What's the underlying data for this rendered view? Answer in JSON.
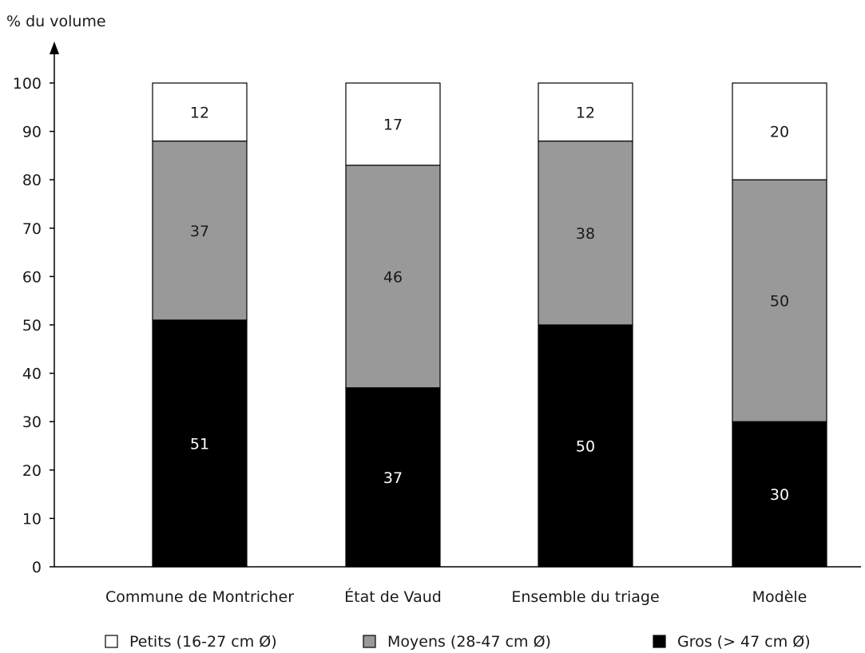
{
  "chart_data": {
    "type": "bar",
    "stacked": true,
    "title": "",
    "xlabel": "",
    "ylabel": "% du volume",
    "ylim": [
      0,
      100
    ],
    "yticks": [
      0,
      10,
      20,
      30,
      40,
      50,
      60,
      70,
      80,
      90,
      100
    ],
    "grid": false,
    "legend_position": "bottom",
    "categories": [
      "Commune de Montricher",
      "État de Vaud",
      "Ensemble du triage",
      "Modèle"
    ],
    "series": [
      {
        "name": "Gros (> 47 cm Ø)",
        "color": "#000000",
        "label_color": "#ffffff",
        "values": [
          51,
          37,
          50,
          30
        ]
      },
      {
        "name": "Moyens (28-47 cm Ø)",
        "color": "#999999",
        "label_color": "#1a1a1a",
        "values": [
          37,
          46,
          38,
          50
        ]
      },
      {
        "name": "Petits (16-27 cm Ø)",
        "color": "#ffffff",
        "label_color": "#1a1a1a",
        "values": [
          12,
          17,
          12,
          20
        ]
      }
    ],
    "legend_order": [
      "Petits (16-27 cm Ø)",
      "Moyens (28-47 cm Ø)",
      "Gros (> 47 cm Ø)"
    ]
  }
}
